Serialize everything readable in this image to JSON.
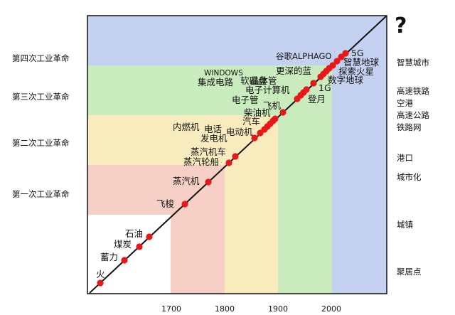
{
  "colors": {
    "blue": "#c4d1f0",
    "green": "#c9ebbd",
    "yellow": "#f8ecbf",
    "pink": "#f6cfc6",
    "white": "#ffffff",
    "line": "#111111",
    "dot": "#e8181a"
  },
  "question_mark": "?",
  "x_ticks": [
    "1700",
    "1800",
    "1900",
    "2000"
  ],
  "revolutions": [
    "第四次工业革命",
    "第三次工业革命",
    "第二次工业革命",
    "第一次工业革命"
  ],
  "settlements": [
    "智慧城市",
    "高速铁路",
    "空港",
    "高速公路",
    "铁路网",
    "港口",
    "城市化",
    "城镇",
    "聚居点"
  ],
  "milestones": [
    "火",
    "蓄力",
    "煤炭",
    "石油",
    "飞梭",
    "蒸汽机",
    "蒸汽轮船",
    "蒸汽机车",
    "发电机",
    "电话",
    "内燃机",
    "电动机",
    "汽车",
    "柴油机",
    "飞机",
    "电子管",
    "电子计算机",
    "晶体管",
    "集成电路",
    "WINDOWS",
    "软磁盘",
    "登月",
    "1G",
    "数字地球",
    "更深的蓝",
    "谷歌ALPHAGO",
    "探索火星",
    "智慧地球",
    "5G"
  ]
}
